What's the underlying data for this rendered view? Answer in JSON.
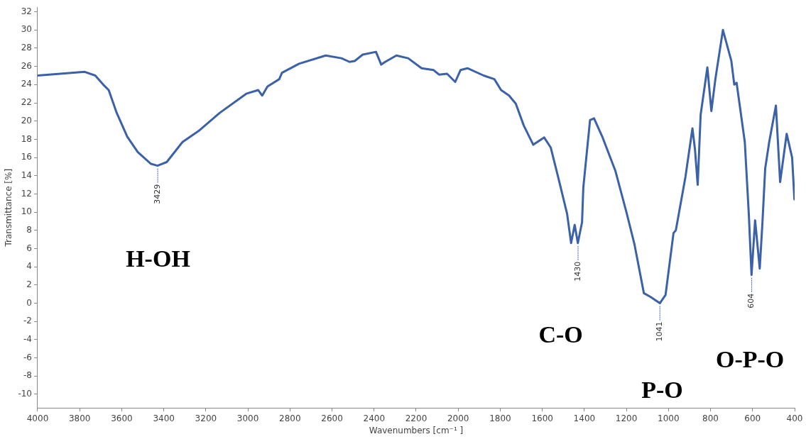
{
  "chart_data": {
    "type": "line",
    "xlabel": "Wavenumbers [cm⁻¹ ]",
    "ylabel": "Transmittance [%]",
    "xlim": [
      4000,
      400
    ],
    "ylim": [
      -11.5,
      32.5
    ],
    "xticks": [
      4000,
      3800,
      3600,
      3400,
      3200,
      3000,
      2800,
      2600,
      2400,
      2200,
      2000,
      1800,
      1600,
      1400,
      1200,
      1000,
      800,
      600,
      400
    ],
    "yticks": [
      -10,
      -8,
      -6,
      -4,
      -2,
      0,
      2,
      4,
      6,
      8,
      10,
      12,
      14,
      16,
      18,
      20,
      22,
      24,
      26,
      28,
      30,
      32
    ],
    "grid": false,
    "legend": false,
    "marker": "none",
    "line_style": "solid",
    "series": [
      {
        "color": "#3b62a8",
        "x": [
          4000,
          3776,
          3726,
          3688,
          3662,
          3624,
          3574,
          3524,
          3461,
          3430,
          3386,
          3311,
          3235,
          3134,
          3008,
          2951,
          2932,
          2907,
          2851,
          2838,
          2757,
          2630,
          2555,
          2517,
          2492,
          2454,
          2391,
          2366,
          2347,
          2294,
          2238,
          2174,
          2117,
          2091,
          2053,
          2014,
          1989,
          1956,
          1879,
          1828,
          1796,
          1758,
          1726,
          1688,
          1643,
          1591,
          1560,
          1522,
          1482,
          1463,
          1446,
          1431,
          1411,
          1405,
          1373,
          1354,
          1315,
          1252,
          1200,
          1162,
          1117,
          1086,
          1041,
          1014,
          976,
          965,
          919,
          886,
          874,
          861,
          847,
          815,
          796,
          777,
          741,
          701,
          687,
          676,
          637,
          618,
          605,
          588,
          566,
          553,
          540,
          521,
          489,
          469,
          438,
          412,
          401
        ],
        "values": [
          25.0,
          25.4,
          25.0,
          24.0,
          23.4,
          20.9,
          18.3,
          16.6,
          15.3,
          15.1,
          15.5,
          17.7,
          18.9,
          20.9,
          23.0,
          23.4,
          22.8,
          23.8,
          24.6,
          25.3,
          26.3,
          27.2,
          26.9,
          26.5,
          26.6,
          27.3,
          27.6,
          26.2,
          26.5,
          27.2,
          26.9,
          25.8,
          25.6,
          25.1,
          25.2,
          24.3,
          25.6,
          25.8,
          25.0,
          24.6,
          23.4,
          22.8,
          21.9,
          19.5,
          17.4,
          18.2,
          17.1,
          13.6,
          9.8,
          6.6,
          8.6,
          6.6,
          8.9,
          12.7,
          20.1,
          20.3,
          18.3,
          14.5,
          10.0,
          6.5,
          1.1,
          0.7,
          0.0,
          0.9,
          7.7,
          8.0,
          13.9,
          19.2,
          16.9,
          13.0,
          20.7,
          25.9,
          21.1,
          24.6,
          30.0,
          26.6,
          24.0,
          24.2,
          17.7,
          9.8,
          3.1,
          9.1,
          3.8,
          8.9,
          14.8,
          17.7,
          21.7,
          13.3,
          18.6,
          16.0,
          11.4
        ]
      }
    ],
    "annotations": [
      {
        "text": "3429",
        "x": 3429,
        "y": 15.1
      },
      {
        "text": "1430",
        "x": 1430,
        "y": 6.6
      },
      {
        "text": "1041",
        "x": 1041,
        "y": 0.0
      },
      {
        "text": "604",
        "x": 604,
        "y": 3.1
      },
      "H-OH",
      "C-O",
      "P-O",
      "O-P-O"
    ]
  }
}
